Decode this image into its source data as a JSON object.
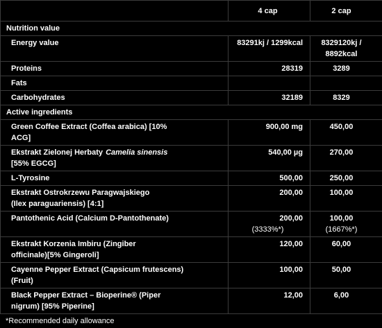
{
  "table": {
    "columns": [
      "4 cap",
      "2 cap"
    ],
    "sections": [
      {
        "title": "Nutrition value",
        "rows": [
          {
            "label": [
              "Energy value"
            ],
            "values": [
              "83291kj / 1299kcal",
              "8329120kj / 8892kcal"
            ]
          },
          {
            "label": [
              "Proteins"
            ],
            "values": [
              "28319",
              "3289"
            ]
          },
          {
            "label": [
              "Fats"
            ],
            "values": []
          },
          {
            "label": [
              "Carbohydrates"
            ],
            "values": [
              "32189",
              "8329"
            ]
          }
        ]
      },
      {
        "title": "Active ingredients",
        "rows": [
          {
            "label": [
              "Green Coffee Extract (Coffea arabica) [10%",
              "ACG]"
            ],
            "values": [
              "900,00 mg",
              "450,00"
            ]
          },
          {
            "label": [
              [
                {
                  "text": "Ekstrakt Zielonej Herbaty"
                },
                {
                  "text": "Camelia sinensis",
                  "italic": true
                }
              ],
              "[55% EGCG]"
            ],
            "values": [
              "540,00 µg",
              "270,00"
            ]
          },
          {
            "label": [
              "L-Tyrosine"
            ],
            "values": [
              "500,00",
              "250,00"
            ]
          },
          {
            "label": [
              "Ekstrakt Ostrokrzewu Paragwajskiego",
              "(Ilex paraguariensis) [4:1]"
            ],
            "values": [
              "200,00",
              "100,00"
            ]
          },
          {
            "label": [
              "Pantothenic Acid (Calcium D-Pantothenate)"
            ],
            "values": [
              "200,00",
              "100,00"
            ],
            "notes": [
              "(3333%*)",
              "(1667%*)"
            ]
          },
          {
            "label": [
              "Ekstrakt Korzenia Imbiru (Zingiber",
              "officinale)[5% Gingeroli]"
            ],
            "values": [
              "120,00",
              "60,00"
            ]
          },
          {
            "label": [
              "Cayenne Pepper Extract (Capsicum frutescens)",
              "(Fruit)"
            ],
            "values": [
              "100,00",
              "50,00"
            ]
          },
          {
            "label": [
              "Black Pepper Extract – Bioperine® (Piper",
              "nigrum) [95% Piperine]"
            ],
            "values": [
              "12,00",
              "6,00"
            ]
          }
        ]
      }
    ],
    "footnote": "*Recommended daily allowance"
  }
}
